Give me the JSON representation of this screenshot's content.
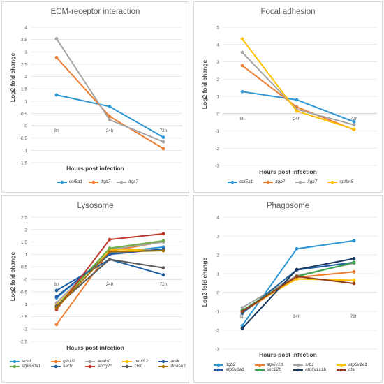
{
  "chart_data": [
    {
      "type": "line",
      "title": "ECM-receptor interaction",
      "xlabel": "Hours post infection",
      "ylabel": "Log2 fold change",
      "categories": [
        "8h",
        "24h",
        "72h"
      ],
      "ylim": [
        -1.5,
        4
      ],
      "ytick_step": 0.5,
      "grid": true,
      "legend": "bottom",
      "series": [
        {
          "name": "col5a1",
          "color": "#2e97d3",
          "values": [
            1.25,
            0.78,
            -0.47
          ]
        },
        {
          "name": "itgb7",
          "color": "#ed7d31",
          "values": [
            2.77,
            0.38,
            -0.93
          ]
        },
        {
          "name": "itga7",
          "color": "#a5a5a5",
          "values": [
            3.53,
            0.24,
            -0.65
          ]
        }
      ]
    },
    {
      "type": "line",
      "title": "Focal adhesion",
      "xlabel": "Hours post infection",
      "ylabel": "Log2 fold change",
      "categories": [
        "8h",
        "24h",
        "72h"
      ],
      "ylim": [
        -3,
        5
      ],
      "ytick_step": 1,
      "grid": true,
      "legend": "bottom",
      "series": [
        {
          "name": "col5a1",
          "color": "#2e97d3",
          "values": [
            1.27,
            0.8,
            -0.47
          ]
        },
        {
          "name": "itgb7",
          "color": "#ed7d31",
          "values": [
            2.78,
            0.38,
            -0.93
          ]
        },
        {
          "name": "itga7",
          "color": "#a5a5a5",
          "values": [
            3.55,
            0.25,
            -0.65
          ]
        },
        {
          "name": "sptbn5",
          "color": "#ffc000",
          "values": [
            4.32,
            0.15,
            -0.9
          ]
        }
      ]
    },
    {
      "type": "line",
      "title": "Lysosome",
      "xlabel": "Hours post infection",
      "ylabel": "Log2 fold change",
      "categories": [
        "8h",
        "24h",
        "72h"
      ],
      "ylim": [
        -2.5,
        2.5
      ],
      "ytick_step": 0.5,
      "grid": true,
      "legend": "bottom",
      "series": [
        {
          "name": "arsd",
          "color": "#2e97d3",
          "values": [
            -0.75,
            1.05,
            1.3
          ]
        },
        {
          "name": "glb1l2",
          "color": "#ed7d31",
          "values": [
            -1.82,
            1.12,
            1.52
          ]
        },
        {
          "name": "aoah1",
          "color": "#a5a5a5",
          "values": [
            -0.95,
            1.2,
            1.5
          ]
        },
        {
          "name": "neu3.2",
          "color": "#ffc000",
          "values": [
            -1.05,
            1.2,
            1.15
          ]
        },
        {
          "name": "arsk",
          "color": "#2458a6",
          "values": [
            -0.7,
            1.0,
            1.22
          ]
        },
        {
          "name": "atp6v0a1",
          "color": "#70ad47",
          "values": [
            -1.1,
            1.25,
            1.55
          ]
        },
        {
          "name": "sel1l",
          "color": "#1f5fa0",
          "values": [
            -0.45,
            0.8,
            0.18
          ]
        },
        {
          "name": "abcg2c",
          "color": "#c0392b",
          "values": [
            -1.22,
            1.6,
            1.83
          ]
        },
        {
          "name": "ctsc",
          "color": "#595959",
          "values": [
            -1.08,
            0.8,
            0.46
          ]
        },
        {
          "name": "dnase2",
          "color": "#a87000",
          "values": [
            -1.15,
            1.1,
            1.15
          ]
        }
      ]
    },
    {
      "type": "line",
      "title": "Phagosome",
      "xlabel": "Hours post infection",
      "ylabel": "Log2 fold change",
      "categories": [
        "8h",
        "24h",
        "72h"
      ],
      "ylim": [
        -3,
        4
      ],
      "ytick_step": 1,
      "grid": true,
      "legend": "bottom",
      "series": [
        {
          "name": "itgb2",
          "color": "#2e97d3",
          "values": [
            -1.75,
            2.32,
            2.75
          ]
        },
        {
          "name": "atp6v1d",
          "color": "#ed7d31",
          "values": [
            -1.05,
            0.8,
            1.1
          ]
        },
        {
          "name": "srb1",
          "color": "#a5a5a5",
          "values": [
            -0.8,
            0.9,
            1.55
          ]
        },
        {
          "name": "atp6v1e1",
          "color": "#ffc000",
          "values": [
            -0.95,
            0.72,
            0.65
          ]
        },
        {
          "name": "atp6v0a1",
          "color": "#1f5fa0",
          "values": [
            -1.1,
            1.2,
            1.6
          ]
        },
        {
          "name": "sec22b",
          "color": "#38a54a",
          "values": [
            -0.95,
            0.85,
            1.6
          ]
        },
        {
          "name": "atp6v1c1b",
          "color": "#17375e",
          "values": [
            -1.9,
            1.22,
            1.8
          ]
        },
        {
          "name": "ctsl",
          "color": "#943d1a",
          "values": [
            -1.0,
            0.85,
            0.48
          ]
        }
      ]
    }
  ]
}
